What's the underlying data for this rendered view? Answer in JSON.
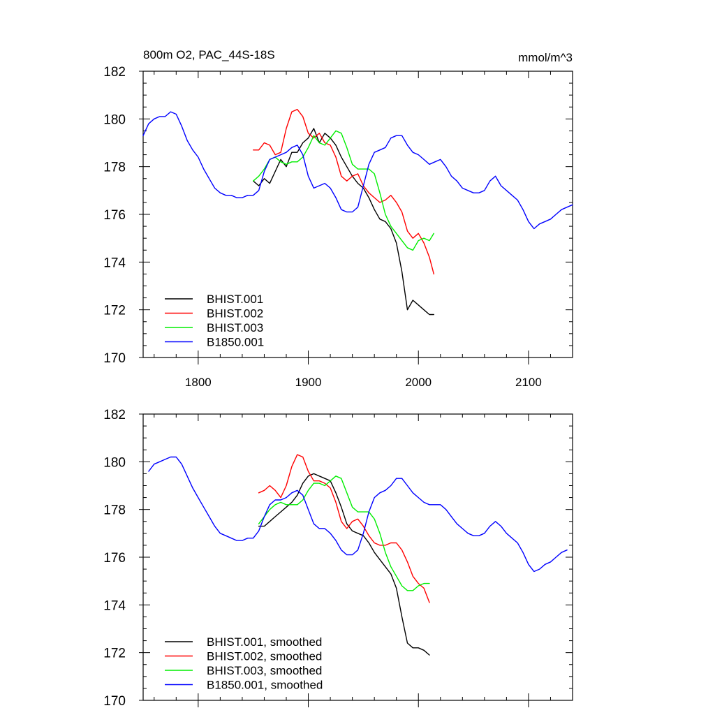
{
  "chart_data": [
    {
      "type": "line",
      "title": "800m O2, PAC_44S-18S",
      "unit_label": "mmol/m^3",
      "xlim": [
        1750,
        2140
      ],
      "ylim": [
        170,
        182
      ],
      "x_ticks": [
        1800,
        1900,
        2000,
        2100
      ],
      "x_tick_labels": [
        "1800",
        "1900",
        "2000",
        "2100"
      ],
      "y_ticks": [
        170,
        172,
        174,
        176,
        178,
        180,
        182
      ],
      "y_tick_labels": [
        "170",
        "172",
        "174",
        "176",
        "178",
        "180",
        "182"
      ],
      "grid": false,
      "legend_position": "bottom-left",
      "series": [
        {
          "name": "BHIST.001",
          "color": "#000000",
          "x": [
            1850,
            1855,
            1860,
            1865,
            1870,
            1875,
            1880,
            1885,
            1890,
            1895,
            1900,
            1905,
            1910,
            1915,
            1920,
            1925,
            1930,
            1935,
            1940,
            1945,
            1950,
            1955,
            1960,
            1965,
            1970,
            1975,
            1980,
            1985,
            1990,
            1995,
            2000,
            2005,
            2010,
            2014
          ],
          "y": [
            177.4,
            177.2,
            177.5,
            177.3,
            177.8,
            178.3,
            178.0,
            178.6,
            178.6,
            179.0,
            179.2,
            179.6,
            179.0,
            179.4,
            179.2,
            178.9,
            178.4,
            178.0,
            177.6,
            177.3,
            177.1,
            176.7,
            176.2,
            175.8,
            175.7,
            175.4,
            174.8,
            173.6,
            172.0,
            172.4,
            172.2,
            172.0,
            171.8,
            171.8
          ]
        },
        {
          "name": "BHIST.002",
          "color": "#ff0000",
          "x": [
            1850,
            1855,
            1860,
            1865,
            1870,
            1875,
            1880,
            1885,
            1890,
            1895,
            1900,
            1905,
            1910,
            1915,
            1920,
            1925,
            1930,
            1935,
            1940,
            1945,
            1950,
            1955,
            1960,
            1965,
            1970,
            1975,
            1980,
            1985,
            1990,
            1995,
            2000,
            2005,
            2010,
            2014
          ],
          "y": [
            178.7,
            178.7,
            179.0,
            178.9,
            178.5,
            178.6,
            179.6,
            180.3,
            180.4,
            180.1,
            179.4,
            179.2,
            179.4,
            179.0,
            178.9,
            178.4,
            177.6,
            177.4,
            177.6,
            177.7,
            177.2,
            176.9,
            176.7,
            176.5,
            176.6,
            176.8,
            176.5,
            176.1,
            175.3,
            175.0,
            175.2,
            174.8,
            174.2,
            173.5
          ]
        },
        {
          "name": "BHIST.003",
          "color": "#00ee00",
          "x": [
            1850,
            1855,
            1860,
            1865,
            1870,
            1875,
            1880,
            1885,
            1890,
            1895,
            1900,
            1905,
            1910,
            1915,
            1920,
            1925,
            1930,
            1935,
            1940,
            1945,
            1950,
            1955,
            1960,
            1965,
            1970,
            1975,
            1980,
            1985,
            1990,
            1995,
            2000,
            2005,
            2010,
            2014
          ],
          "y": [
            177.4,
            177.6,
            177.9,
            178.3,
            178.4,
            178.2,
            178.1,
            178.2,
            178.2,
            178.4,
            178.8,
            179.3,
            179.0,
            178.9,
            179.2,
            179.5,
            179.4,
            178.8,
            178.1,
            177.9,
            177.9,
            177.9,
            177.7,
            176.9,
            176.0,
            175.5,
            175.2,
            174.9,
            174.6,
            174.5,
            174.9,
            175.0,
            174.9,
            175.2
          ]
        },
        {
          "name": "B1850.001",
          "color": "#0000ff",
          "x": [
            1750,
            1755,
            1760,
            1765,
            1770,
            1775,
            1780,
            1785,
            1790,
            1795,
            1800,
            1805,
            1810,
            1815,
            1820,
            1825,
            1830,
            1835,
            1840,
            1845,
            1850,
            1855,
            1860,
            1865,
            1870,
            1875,
            1880,
            1885,
            1890,
            1895,
            1900,
            1905,
            1910,
            1915,
            1920,
            1925,
            1930,
            1935,
            1940,
            1945,
            1950,
            1955,
            1960,
            1965,
            1970,
            1975,
            1980,
            1985,
            1990,
            1995,
            2000,
            2005,
            2010,
            2015,
            2020,
            2025,
            2030,
            2035,
            2040,
            2045,
            2050,
            2055,
            2060,
            2065,
            2070,
            2075,
            2080,
            2085,
            2090,
            2095,
            2100,
            2105,
            2110,
            2115,
            2120,
            2125,
            2130,
            2135,
            2140
          ],
          "y": [
            179.3,
            179.8,
            180.0,
            180.1,
            180.1,
            180.3,
            180.2,
            179.7,
            179.1,
            178.7,
            178.4,
            177.9,
            177.5,
            177.1,
            176.9,
            176.8,
            176.8,
            176.7,
            176.7,
            176.8,
            176.8,
            177.0,
            177.8,
            178.3,
            178.4,
            178.5,
            178.6,
            178.8,
            178.9,
            178.5,
            177.6,
            177.1,
            177.2,
            177.3,
            177.1,
            176.7,
            176.2,
            176.1,
            176.1,
            176.3,
            177.2,
            178.1,
            178.6,
            178.7,
            178.8,
            179.2,
            179.3,
            179.3,
            178.9,
            178.6,
            178.5,
            178.3,
            178.1,
            178.2,
            178.3,
            178.0,
            177.6,
            177.4,
            177.1,
            177.0,
            176.9,
            176.9,
            177.0,
            177.4,
            177.6,
            177.2,
            177.0,
            176.8,
            176.6,
            176.2,
            175.7,
            175.4,
            175.6,
            175.7,
            175.8,
            176.0,
            176.2,
            176.3,
            176.4
          ]
        }
      ]
    },
    {
      "type": "line",
      "xlim": [
        1750,
        2140
      ],
      "ylim": [
        170,
        182
      ],
      "x_ticks": [
        1800,
        1900,
        2000,
        2100
      ],
      "y_ticks": [
        170,
        172,
        174,
        176,
        178,
        180,
        182
      ],
      "y_tick_labels": [
        "170",
        "172",
        "174",
        "176",
        "178",
        "180",
        "182"
      ],
      "grid": false,
      "legend_position": "bottom-left",
      "series": [
        {
          "name": "BHIST.001, smoothed",
          "color": "#000000",
          "x": [
            1855,
            1860,
            1865,
            1870,
            1875,
            1880,
            1885,
            1890,
            1895,
            1900,
            1905,
            1910,
            1915,
            1920,
            1925,
            1930,
            1935,
            1940,
            1945,
            1950,
            1955,
            1960,
            1965,
            1970,
            1975,
            1980,
            1985,
            1990,
            1995,
            2000,
            2005,
            2010
          ],
          "y": [
            177.3,
            177.3,
            177.5,
            177.7,
            177.9,
            178.1,
            178.3,
            178.6,
            179.1,
            179.4,
            179.5,
            179.4,
            179.3,
            179.2,
            178.7,
            178.1,
            177.4,
            177.1,
            177.0,
            176.9,
            176.6,
            176.2,
            175.9,
            175.6,
            175.3,
            174.7,
            173.5,
            172.4,
            172.2,
            172.2,
            172.1,
            171.9
          ]
        },
        {
          "name": "BHIST.002, smoothed",
          "color": "#ff0000",
          "x": [
            1855,
            1860,
            1865,
            1870,
            1875,
            1880,
            1885,
            1890,
            1895,
            1900,
            1905,
            1910,
            1915,
            1920,
            1925,
            1930,
            1935,
            1940,
            1945,
            1950,
            1955,
            1960,
            1965,
            1970,
            1975,
            1980,
            1985,
            1990,
            1995,
            2000,
            2005,
            2010
          ],
          "y": [
            178.7,
            178.8,
            179.0,
            178.8,
            178.5,
            179.0,
            179.8,
            180.3,
            180.2,
            179.6,
            179.2,
            179.2,
            179.1,
            178.9,
            178.3,
            177.5,
            177.2,
            177.5,
            177.6,
            177.3,
            176.9,
            176.6,
            176.5,
            176.5,
            176.6,
            176.6,
            176.3,
            175.8,
            175.2,
            174.9,
            174.7,
            174.1
          ]
        },
        {
          "name": "BHIST.003, smoothed",
          "color": "#00ee00",
          "x": [
            1855,
            1860,
            1865,
            1870,
            1875,
            1880,
            1885,
            1890,
            1895,
            1900,
            1905,
            1910,
            1915,
            1920,
            1925,
            1930,
            1935,
            1940,
            1945,
            1950,
            1955,
            1960,
            1965,
            1970,
            1975,
            1980,
            1985,
            1990,
            1995,
            2000,
            2005,
            2010
          ],
          "y": [
            177.4,
            177.7,
            178.0,
            178.2,
            178.3,
            178.2,
            178.2,
            178.2,
            178.4,
            178.8,
            179.1,
            179.1,
            179.0,
            179.2,
            179.4,
            179.3,
            178.7,
            178.1,
            177.9,
            177.9,
            177.9,
            177.6,
            177.0,
            176.2,
            175.6,
            175.2,
            174.8,
            174.6,
            174.6,
            174.8,
            174.9,
            174.9
          ]
        },
        {
          "name": "B1850.001, smoothed",
          "color": "#0000ff",
          "x": [
            1755,
            1760,
            1765,
            1770,
            1775,
            1780,
            1785,
            1790,
            1795,
            1800,
            1805,
            1810,
            1815,
            1820,
            1825,
            1830,
            1835,
            1840,
            1845,
            1850,
            1855,
            1860,
            1865,
            1870,
            1875,
            1880,
            1885,
            1890,
            1895,
            1900,
            1905,
            1910,
            1915,
            1920,
            1925,
            1930,
            1935,
            1940,
            1945,
            1950,
            1955,
            1960,
            1965,
            1970,
            1975,
            1980,
            1985,
            1990,
            1995,
            2000,
            2005,
            2010,
            2015,
            2020,
            2025,
            2030,
            2035,
            2040,
            2045,
            2050,
            2055,
            2060,
            2065,
            2070,
            2075,
            2080,
            2085,
            2090,
            2095,
            2100,
            2105,
            2110,
            2115,
            2120,
            2125,
            2130,
            2135
          ],
          "y": [
            179.6,
            179.9,
            180.0,
            180.1,
            180.2,
            180.2,
            179.9,
            179.4,
            178.9,
            178.5,
            178.1,
            177.7,
            177.3,
            177.0,
            176.9,
            176.8,
            176.7,
            176.7,
            176.8,
            176.8,
            177.1,
            177.7,
            178.2,
            178.4,
            178.4,
            178.5,
            178.7,
            178.8,
            178.6,
            178.0,
            177.4,
            177.2,
            177.2,
            177.0,
            176.7,
            176.3,
            176.1,
            176.1,
            176.3,
            177.0,
            177.9,
            178.5,
            178.7,
            178.8,
            179.0,
            179.3,
            179.3,
            179.0,
            178.7,
            178.5,
            178.3,
            178.2,
            178.2,
            178.2,
            178.0,
            177.7,
            177.4,
            177.2,
            177.0,
            176.9,
            176.9,
            177.0,
            177.3,
            177.5,
            177.3,
            177.0,
            176.8,
            176.6,
            176.2,
            175.7,
            175.4,
            175.5,
            175.7,
            175.8,
            176.0,
            176.2,
            176.3
          ]
        }
      ]
    }
  ]
}
